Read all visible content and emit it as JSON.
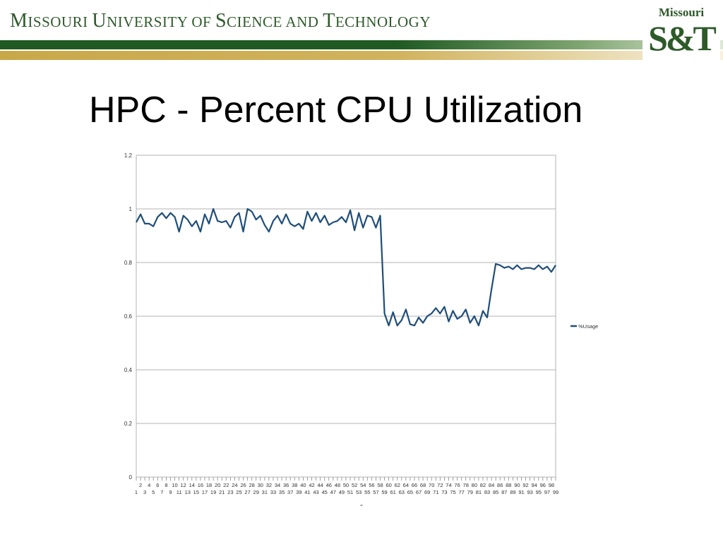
{
  "header": {
    "university_name_parts": [
      "M",
      "issouri ",
      "U",
      "niversity of ",
      "S",
      "cience and ",
      "T",
      "echnology"
    ],
    "logo_top": "Missouri",
    "logo_main": "S&T",
    "colors": {
      "green": "#1f5a22",
      "gold": "#c9a84a",
      "text_green": "#2e5a2a"
    }
  },
  "slide": {
    "title": "HPC - Percent CPU Utilization",
    "footer_mark": "-"
  },
  "chart_data": {
    "type": "line",
    "title": "",
    "xlabel": "",
    "ylabel": "",
    "ylim": [
      0,
      1.2
    ],
    "y_ticks": [
      0,
      0.2,
      0.4,
      0.6,
      0.8,
      1,
      1.2
    ],
    "x": [
      1,
      2,
      3,
      4,
      5,
      6,
      7,
      8,
      9,
      10,
      11,
      12,
      13,
      14,
      15,
      16,
      17,
      18,
      19,
      20,
      21,
      22,
      23,
      24,
      25,
      26,
      27,
      28,
      29,
      30,
      31,
      32,
      33,
      34,
      35,
      36,
      37,
      38,
      39,
      40,
      41,
      42,
      43,
      44,
      45,
      46,
      47,
      48,
      49,
      50,
      51,
      52,
      53,
      54,
      55,
      56,
      57,
      58,
      59,
      60,
      61,
      62,
      63,
      64,
      65,
      66,
      67,
      68,
      69,
      70,
      71,
      72,
      73,
      74,
      75,
      76,
      77,
      78,
      79,
      80,
      81,
      82,
      83,
      84,
      85,
      86,
      87,
      88,
      89,
      90,
      91,
      92,
      93,
      94,
      95,
      96,
      97,
      98,
      99
    ],
    "grid": true,
    "legend_position": "right",
    "series": [
      {
        "name": "%Usage",
        "color": "#1f4e79",
        "values": [
          0.95,
          0.98,
          0.945,
          0.945,
          0.935,
          0.97,
          0.985,
          0.965,
          0.985,
          0.97,
          0.915,
          0.975,
          0.96,
          0.935,
          0.955,
          0.915,
          0.98,
          0.945,
          1.0,
          0.955,
          0.95,
          0.955,
          0.93,
          0.97,
          0.985,
          0.915,
          1.0,
          0.99,
          0.96,
          0.975,
          0.94,
          0.915,
          0.955,
          0.975,
          0.945,
          0.98,
          0.945,
          0.935,
          0.945,
          0.925,
          0.99,
          0.955,
          0.985,
          0.95,
          0.975,
          0.94,
          0.95,
          0.955,
          0.97,
          0.95,
          0.995,
          0.92,
          0.985,
          0.93,
          0.975,
          0.97,
          0.93,
          0.975,
          0.61,
          0.565,
          0.615,
          0.565,
          0.585,
          0.625,
          0.57,
          0.565,
          0.595,
          0.575,
          0.6,
          0.61,
          0.63,
          0.61,
          0.635,
          0.58,
          0.62,
          0.59,
          0.6,
          0.625,
          0.575,
          0.6,
          0.565,
          0.62,
          0.595,
          0.7,
          0.795,
          0.79,
          0.78,
          0.785,
          0.775,
          0.79,
          0.775,
          0.78,
          0.78,
          0.775,
          0.79,
          0.775,
          0.785,
          0.765,
          0.79
        ]
      }
    ]
  }
}
